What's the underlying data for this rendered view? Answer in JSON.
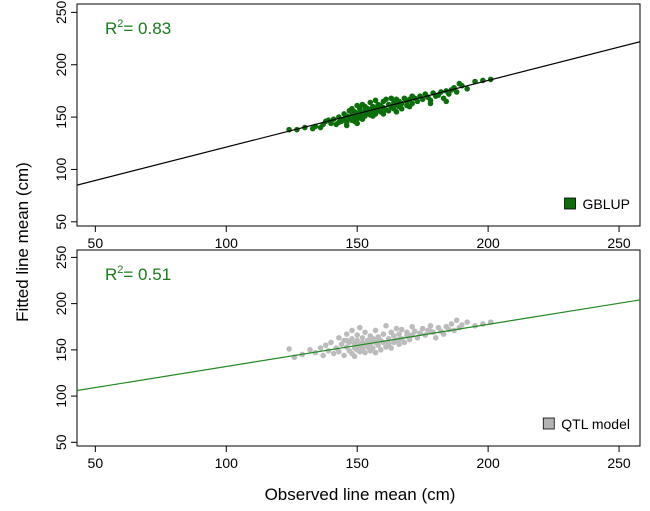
{
  "figure": {
    "ylabel": "Fitted line mean (cm)",
    "xlabel": "Observed line mean (cm)"
  },
  "chart_data": [
    {
      "type": "scatter",
      "xlim": [
        43,
        258
      ],
      "ylim": [
        46,
        258
      ],
      "x_ticks": [
        50,
        100,
        150,
        200,
        250
      ],
      "y_ticks": [
        50,
        100,
        150,
        200,
        250
      ],
      "annotation": {
        "r2_label": "R",
        "r2_exponent": "2",
        "r2_value": "= 0.83",
        "color": "#1a7a1a"
      },
      "fit_line": {
        "color": "#000000",
        "points": [
          [
            43,
            85
          ],
          [
            258,
            222
          ]
        ]
      },
      "point_color": "#0b6e0b",
      "legend": {
        "label": "GBLUP",
        "position": "bottom-right",
        "swatch_color": "#0b6e0b"
      },
      "series": [
        {
          "x": [
            124,
            127,
            130,
            133,
            134,
            136,
            137,
            138,
            139,
            140,
            141,
            142,
            143,
            143,
            144,
            145,
            145,
            146,
            146,
            147,
            147,
            148,
            148,
            148,
            149,
            149,
            149,
            150,
            150,
            150,
            151,
            151,
            151,
            152,
            152,
            152,
            153,
            153,
            153,
            154,
            154,
            155,
            155,
            155,
            156,
            156,
            157,
            157,
            157,
            158,
            158,
            159,
            159,
            160,
            160,
            161,
            161,
            162,
            162,
            163,
            163,
            164,
            164,
            165,
            165,
            166,
            166,
            167,
            167,
            168,
            169,
            169,
            170,
            171,
            171,
            172,
            173,
            174,
            175,
            176,
            177,
            178,
            179,
            180,
            181,
            182,
            183,
            184,
            185,
            186,
            187,
            188,
            189,
            190,
            192,
            195,
            198,
            201,
            152,
            156,
            160,
            146,
            150,
            165,
            170,
            178,
            184
          ],
          "y": [
            138,
            138,
            140,
            139,
            141,
            140,
            143,
            146,
            147,
            144,
            148,
            143,
            150,
            145,
            146,
            153,
            148,
            145,
            151,
            156,
            149,
            152,
            147,
            158,
            150,
            155,
            146,
            161,
            152,
            148,
            155,
            150,
            158,
            153,
            162,
            149,
            156,
            160,
            151,
            158,
            154,
            164,
            157,
            152,
            160,
            155,
            166,
            158,
            153,
            162,
            157,
            161,
            155,
            165,
            159,
            157,
            167,
            162,
            156,
            160,
            168,
            158,
            164,
            162,
            167,
            160,
            165,
            163,
            158,
            168,
            165,
            161,
            167,
            163,
            170,
            168,
            165,
            170,
            167,
            172,
            169,
            166,
            173,
            170,
            171,
            174,
            168,
            175,
            172,
            176,
            178,
            174,
            182,
            180,
            177,
            184,
            185,
            186,
            148,
            151,
            153,
            142,
            144,
            155,
            160,
            163,
            165
          ]
        }
      ]
    },
    {
      "type": "scatter",
      "xlim": [
        43,
        258
      ],
      "ylim": [
        46,
        258
      ],
      "x_ticks": [
        50,
        100,
        150,
        200,
        250
      ],
      "y_ticks": [
        50,
        100,
        150,
        200,
        250
      ],
      "annotation": {
        "r2_label": "R",
        "r2_exponent": "2",
        "r2_value": "= 0.51",
        "color": "#1a7a1a"
      },
      "fit_line": {
        "color": "#1f8a1f",
        "points": [
          [
            43,
            106
          ],
          [
            258,
            204
          ]
        ]
      },
      "point_color": "#bcbcbc",
      "legend": {
        "label": "QTL model",
        "position": "bottom-right",
        "swatch_color": "#b3b3b3"
      },
      "series": [
        {
          "x": [
            124,
            126,
            129,
            132,
            134,
            136,
            137,
            138,
            139,
            140,
            141,
            142,
            143,
            143,
            144,
            145,
            145,
            146,
            146,
            147,
            147,
            148,
            148,
            148,
            149,
            149,
            149,
            150,
            150,
            150,
            151,
            151,
            151,
            152,
            152,
            152,
            153,
            153,
            153,
            154,
            154,
            155,
            155,
            155,
            156,
            156,
            157,
            157,
            157,
            158,
            158,
            159,
            159,
            160,
            160,
            161,
            161,
            162,
            162,
            163,
            163,
            164,
            164,
            165,
            165,
            166,
            166,
            167,
            167,
            168,
            169,
            169,
            170,
            171,
            171,
            172,
            173,
            174,
            175,
            176,
            177,
            178,
            179,
            180,
            181,
            182,
            183,
            184,
            185,
            186,
            187,
            188,
            189,
            190,
            192,
            195,
            198,
            201,
            146,
            150,
            154,
            158,
            162,
            166,
            170,
            174,
            178
          ],
          "y": [
            151,
            142,
            145,
            150,
            147,
            152,
            144,
            155,
            149,
            158,
            146,
            152,
            163,
            148,
            156,
            160,
            144,
            153,
            167,
            149,
            158,
            162,
            146,
            171,
            152,
            157,
            143,
            166,
            150,
            160,
            155,
            148,
            174,
            158,
            151,
            163,
            147,
            169,
            156,
            153,
            160,
            149,
            165,
            157,
            162,
            152,
            171,
            158,
            147,
            164,
            155,
            160,
            150,
            167,
            158,
            153,
            176,
            162,
            155,
            169,
            152,
            165,
            158,
            173,
            160,
            156,
            167,
            162,
            172,
            158,
            165,
            169,
            161,
            175,
            166,
            170,
            163,
            168,
            173,
            166,
            171,
            176,
            169,
            163,
            174,
            170,
            167,
            175,
            172,
            178,
            171,
            182,
            174,
            177,
            180,
            176,
            178,
            180,
            160,
            154,
            159,
            163,
            157,
            161,
            165,
            168,
            170
          ]
        }
      ]
    }
  ]
}
